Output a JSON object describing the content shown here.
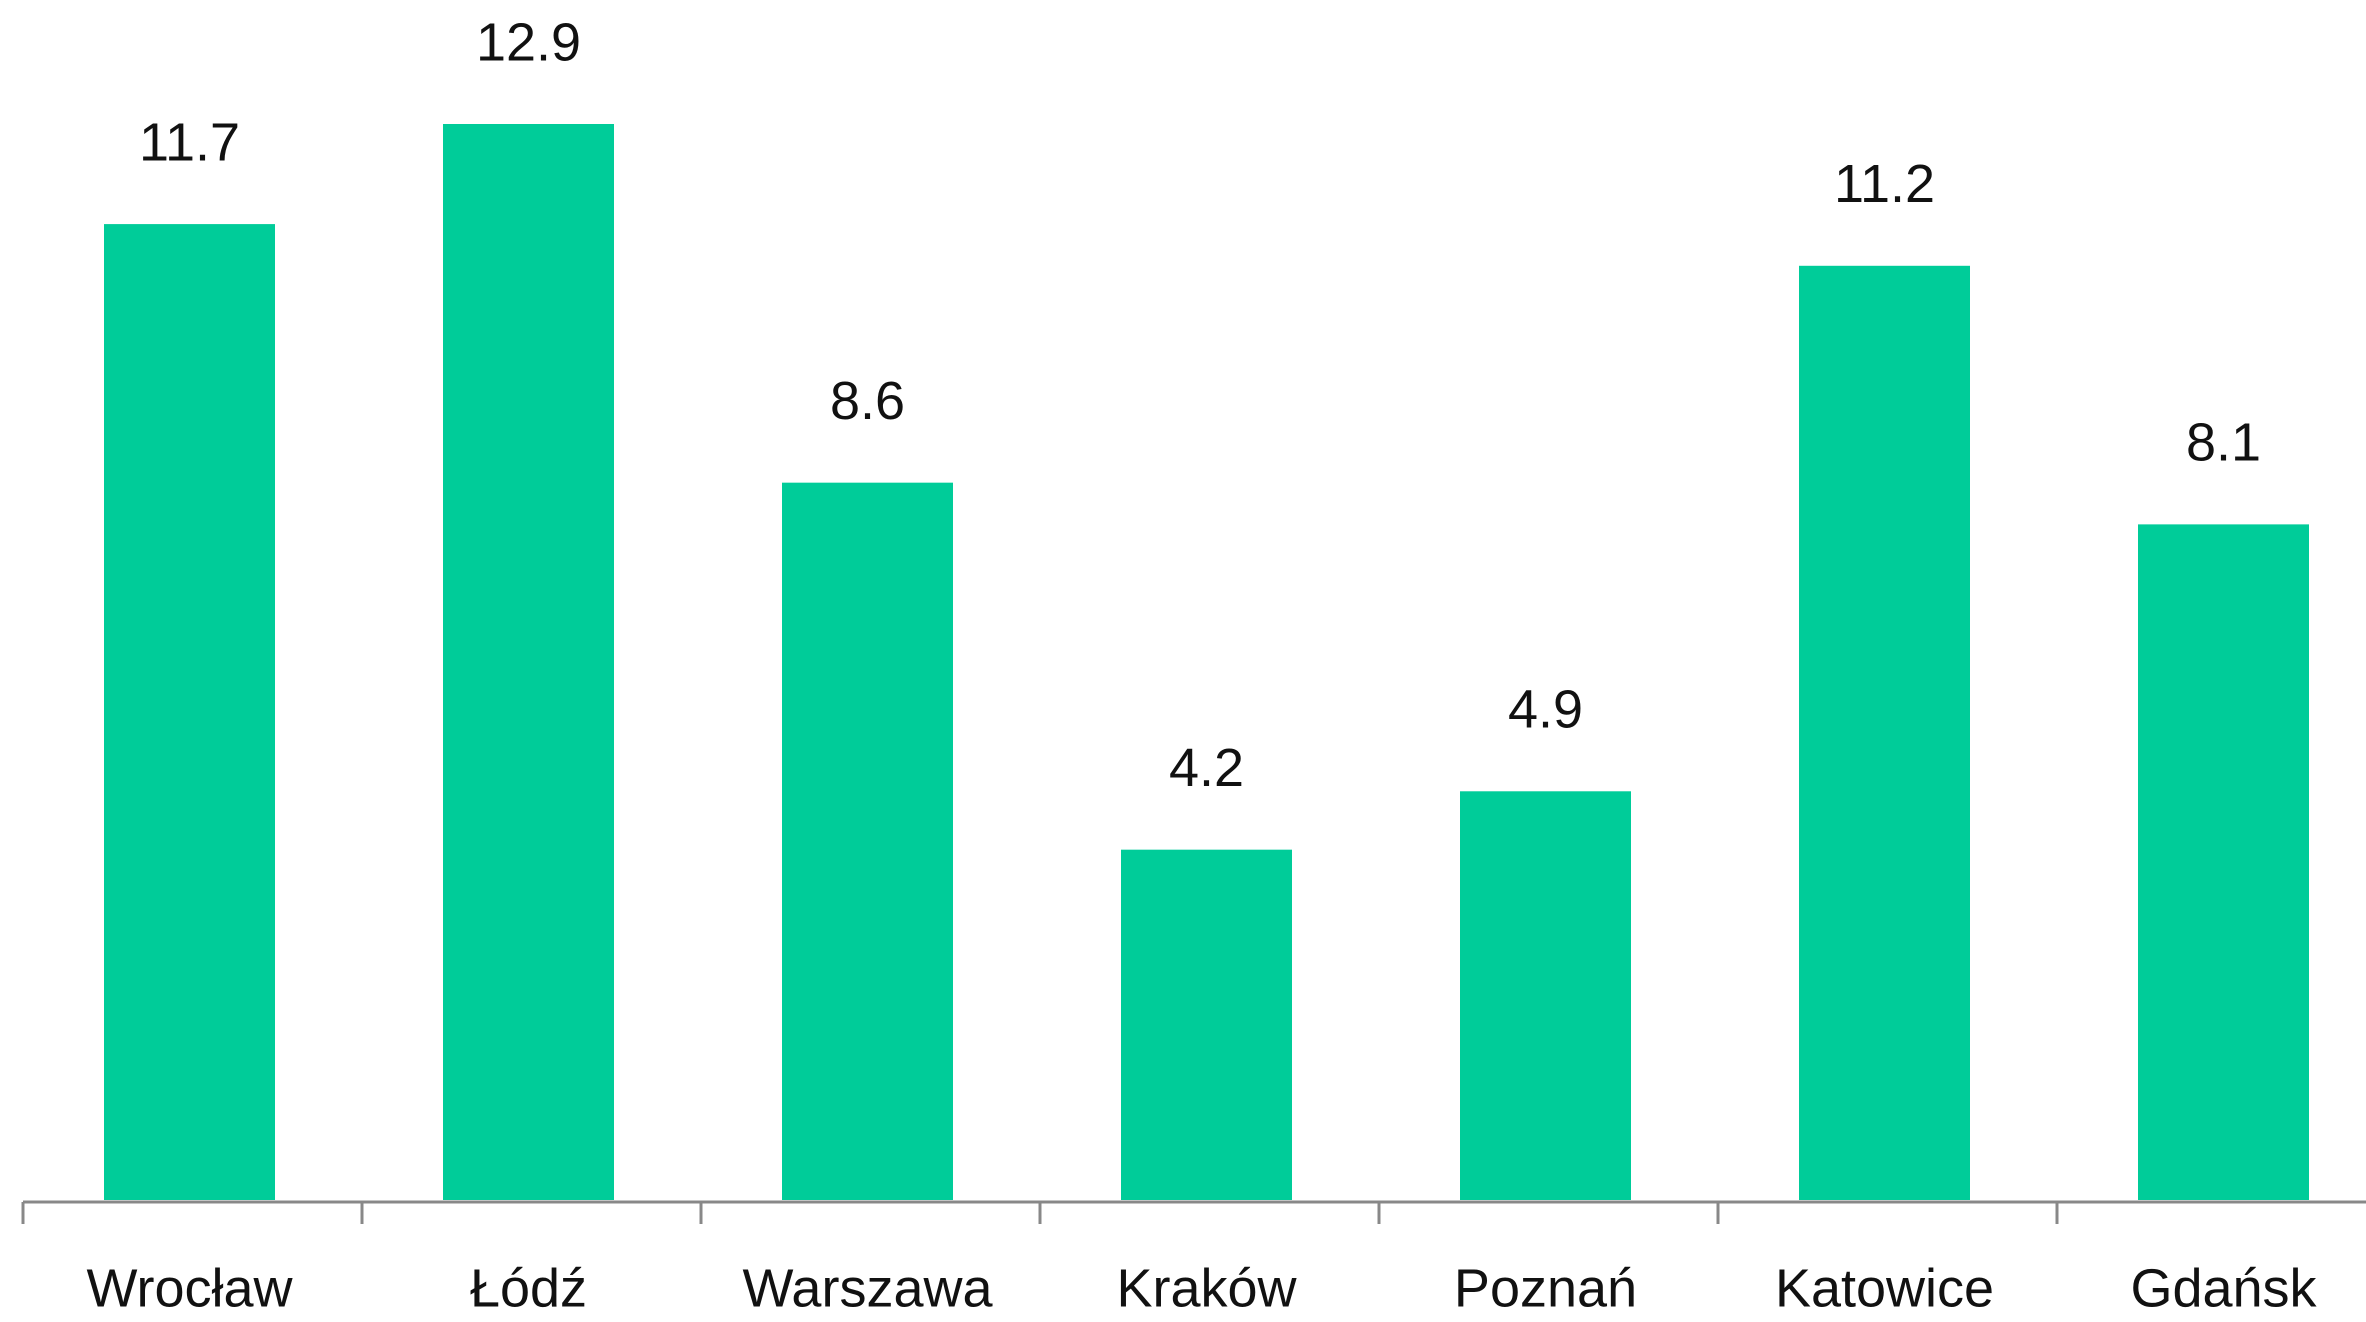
{
  "chart_data": {
    "type": "bar",
    "categories": [
      "Wrocław",
      "Łódź",
      "Warszawa",
      "Kraków",
      "Poznań",
      "Katowice",
      "Gdańsk"
    ],
    "values": [
      11.7,
      12.9,
      8.6,
      4.2,
      4.9,
      11.2,
      8.1
    ],
    "color": "#00cc99"
  }
}
